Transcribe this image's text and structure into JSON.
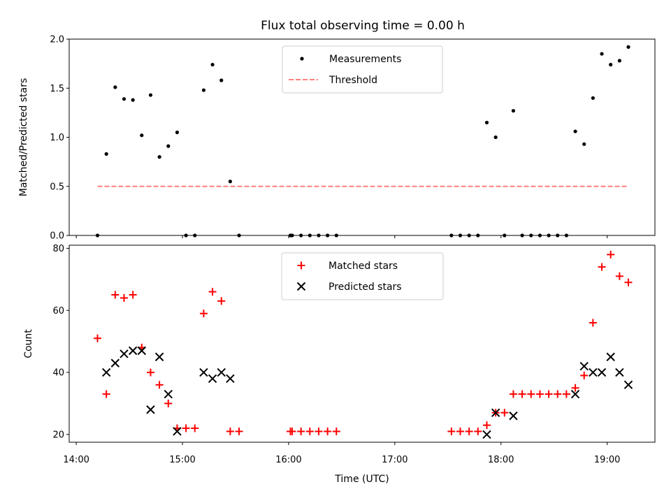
{
  "title": "Flux total observing time = 0.00 h",
  "chart_data": [
    {
      "type": "scatter",
      "ylabel": "Matched/Predicted stars",
      "xlabel": "",
      "ylim": [
        0,
        2
      ],
      "yticks": [
        "0.0",
        "0.5",
        "1.0",
        "1.5",
        "2.0"
      ],
      "yticks_values": [
        0,
        0.5,
        1.0,
        1.5,
        2.0
      ],
      "legend_position": "top-center",
      "series": [
        {
          "name": "Measurements",
          "marker": "dot",
          "color": "#000000",
          "points": [
            [
              "14:12",
              0.0
            ],
            [
              "14:17",
              0.83
            ],
            [
              "14:22",
              1.51
            ],
            [
              "14:27",
              1.39
            ],
            [
              "14:32",
              1.38
            ],
            [
              "14:37",
              1.02
            ],
            [
              "14:42",
              1.43
            ],
            [
              "14:47",
              0.8
            ],
            [
              "14:52",
              0.91
            ],
            [
              "14:57",
              1.05
            ],
            [
              "15:02",
              0.0
            ],
            [
              "15:07",
              0.0
            ],
            [
              "15:12",
              1.48
            ],
            [
              "15:17",
              1.74
            ],
            [
              "15:22",
              1.58
            ],
            [
              "15:27",
              0.55
            ],
            [
              "15:32",
              0.0
            ],
            [
              "16:01",
              0.0
            ],
            [
              "16:02",
              0.0
            ],
            [
              "16:07",
              0.0
            ],
            [
              "16:12",
              0.0
            ],
            [
              "16:17",
              0.0
            ],
            [
              "16:22",
              0.0
            ],
            [
              "16:27",
              0.0
            ],
            [
              "17:32",
              0.0
            ],
            [
              "17:37",
              0.0
            ],
            [
              "17:42",
              0.0
            ],
            [
              "17:47",
              0.0
            ],
            [
              "17:52",
              1.15
            ],
            [
              "17:57",
              1.0
            ],
            [
              "18:02",
              0.0
            ],
            [
              "18:07",
              1.27
            ],
            [
              "18:12",
              0.0
            ],
            [
              "18:17",
              0.0
            ],
            [
              "18:22",
              0.0
            ],
            [
              "18:27",
              0.0
            ],
            [
              "18:32",
              0.0
            ],
            [
              "18:37",
              0.0
            ],
            [
              "18:42",
              1.06
            ],
            [
              "18:47",
              0.93
            ],
            [
              "18:52",
              1.4
            ],
            [
              "18:57",
              1.85
            ],
            [
              "19:02",
              1.74
            ],
            [
              "19:07",
              1.78
            ],
            [
              "19:12",
              1.92
            ]
          ]
        },
        {
          "name": "Threshold",
          "marker": "dashed-line",
          "color": "#ff7f7f",
          "points": [
            [
              "14:12",
              0.5
            ],
            [
              "19:12",
              0.5
            ]
          ]
        }
      ]
    },
    {
      "type": "scatter",
      "ylabel": "Count",
      "xlabel": "Time (UTC)",
      "ylim": [
        17.5,
        81
      ],
      "yticks": [
        "20",
        "40",
        "60",
        "80"
      ],
      "yticks_values": [
        20,
        40,
        60,
        80
      ],
      "xticks": [
        "14:00",
        "15:00",
        "16:00",
        "17:00",
        "18:00",
        "19:00"
      ],
      "legend_position": "top-center",
      "series": [
        {
          "name": "Matched stars",
          "marker": "plus",
          "color": "#ff0000",
          "points": [
            [
              "14:12",
              51
            ],
            [
              "14:17",
              33
            ],
            [
              "14:22",
              65
            ],
            [
              "14:27",
              64
            ],
            [
              "14:32",
              65
            ],
            [
              "14:37",
              48
            ],
            [
              "14:42",
              40
            ],
            [
              "14:47",
              36
            ],
            [
              "14:52",
              30
            ],
            [
              "14:57",
              22
            ],
            [
              "15:02",
              22
            ],
            [
              "15:07",
              22
            ],
            [
              "15:12",
              59
            ],
            [
              "15:17",
              66
            ],
            [
              "15:22",
              63
            ],
            [
              "15:27",
              21
            ],
            [
              "15:32",
              21
            ],
            [
              "16:01",
              21
            ],
            [
              "16:02",
              21
            ],
            [
              "16:07",
              21
            ],
            [
              "16:12",
              21
            ],
            [
              "16:17",
              21
            ],
            [
              "16:22",
              21
            ],
            [
              "16:27",
              21
            ],
            [
              "17:32",
              21
            ],
            [
              "17:37",
              21
            ],
            [
              "17:42",
              21
            ],
            [
              "17:47",
              21
            ],
            [
              "17:52",
              23
            ],
            [
              "17:57",
              27
            ],
            [
              "18:02",
              27
            ],
            [
              "18:07",
              33
            ],
            [
              "18:12",
              33
            ],
            [
              "18:17",
              33
            ],
            [
              "18:22",
              33
            ],
            [
              "18:27",
              33
            ],
            [
              "18:32",
              33
            ],
            [
              "18:37",
              33
            ],
            [
              "18:42",
              35
            ],
            [
              "18:47",
              39
            ],
            [
              "18:52",
              56
            ],
            [
              "18:57",
              74
            ],
            [
              "19:02",
              78
            ],
            [
              "19:07",
              71
            ],
            [
              "19:12",
              69
            ]
          ]
        },
        {
          "name": "Predicted stars",
          "marker": "x",
          "color": "#000000",
          "points": [
            [
              "14:17",
              40
            ],
            [
              "14:22",
              43
            ],
            [
              "14:27",
              46
            ],
            [
              "14:32",
              47
            ],
            [
              "14:37",
              47
            ],
            [
              "14:42",
              28
            ],
            [
              "14:47",
              45
            ],
            [
              "14:52",
              33
            ],
            [
              "14:57",
              21
            ],
            [
              "15:12",
              40
            ],
            [
              "15:17",
              38
            ],
            [
              "15:22",
              40
            ],
            [
              "15:27",
              38
            ],
            [
              "17:52",
              20
            ],
            [
              "17:57",
              27
            ],
            [
              "18:07",
              26
            ],
            [
              "18:42",
              33
            ],
            [
              "18:47",
              42
            ],
            [
              "18:52",
              40
            ],
            [
              "18:57",
              40
            ],
            [
              "19:02",
              45
            ],
            [
              "19:07",
              40
            ],
            [
              "19:12",
              36
            ]
          ]
        }
      ]
    }
  ]
}
